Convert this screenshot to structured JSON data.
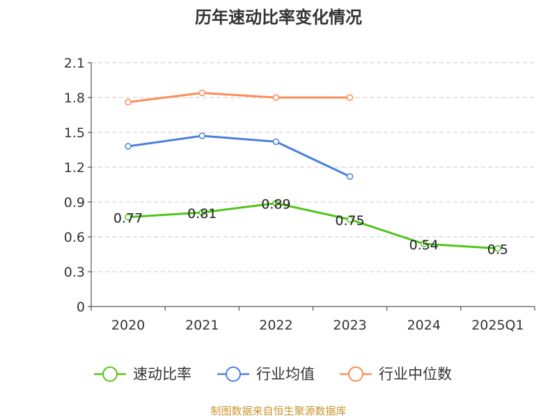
{
  "chart_data": {
    "type": "line",
    "title": "历年速动比率变化情况",
    "categories": [
      "2020",
      "2021",
      "2022",
      "2023",
      "2024",
      "2025Q1"
    ],
    "ylim": [
      0,
      2.1
    ],
    "yticks": [
      "0",
      "0.3",
      "0.6",
      "0.9",
      "1.2",
      "1.5",
      "1.8",
      "2.1"
    ],
    "ytick_values": [
      0,
      0.3,
      0.6,
      0.9,
      1.2,
      1.5,
      1.8,
      2.1
    ],
    "grid": true,
    "legend_position": "bottom",
    "series": [
      {
        "name": "速动比率",
        "color": "#52c41a",
        "values": [
          0.77,
          0.81,
          0.89,
          0.75,
          0.54,
          0.5
        ],
        "labels": [
          "0.77",
          "0.81",
          "0.89",
          "0.75",
          "0.54",
          "0.5"
        ]
      },
      {
        "name": "行业均值",
        "color": "#4a7fe0",
        "values": [
          1.38,
          1.47,
          1.42,
          1.12,
          null,
          null
        ]
      },
      {
        "name": "行业中位数",
        "color": "#ff8c55",
        "values": [
          1.76,
          1.84,
          1.8,
          1.8,
          null,
          null
        ]
      }
    ],
    "source": "制图数据来自恒生聚源数据库"
  }
}
